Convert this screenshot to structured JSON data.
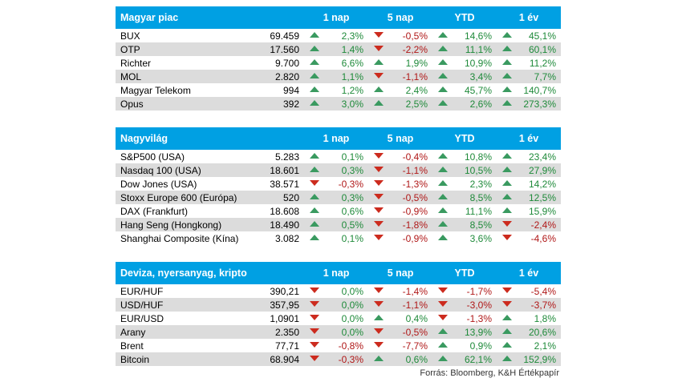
{
  "sections": [
    {
      "title": "Magyar piac",
      "columns": [
        "1 nap",
        "5 nap",
        "YTD",
        "1 év"
      ],
      "rows": [
        {
          "name": "BUX",
          "value": "69.459",
          "changes": [
            {
              "t": "2,3%",
              "d": "up"
            },
            {
              "t": "-0,5%",
              "d": "down"
            },
            {
              "t": "14,6%",
              "d": "up"
            },
            {
              "t": "45,1%",
              "d": "up"
            }
          ]
        },
        {
          "name": "OTP",
          "value": "17.560",
          "changes": [
            {
              "t": "1,4%",
              "d": "up"
            },
            {
              "t": "-2,2%",
              "d": "down"
            },
            {
              "t": "11,1%",
              "d": "up"
            },
            {
              "t": "60,1%",
              "d": "up"
            }
          ]
        },
        {
          "name": "Richter",
          "value": "9.700",
          "changes": [
            {
              "t": "6,6%",
              "d": "up"
            },
            {
              "t": "1,9%",
              "d": "up"
            },
            {
              "t": "10,9%",
              "d": "up"
            },
            {
              "t": "11,2%",
              "d": "up"
            }
          ]
        },
        {
          "name": "MOL",
          "value": "2.820",
          "changes": [
            {
              "t": "1,1%",
              "d": "up"
            },
            {
              "t": "-1,1%",
              "d": "down"
            },
            {
              "t": "3,4%",
              "d": "up"
            },
            {
              "t": "7,7%",
              "d": "up"
            }
          ]
        },
        {
          "name": "Magyar Telekom",
          "value": "994",
          "changes": [
            {
              "t": "1,2%",
              "d": "up"
            },
            {
              "t": "2,4%",
              "d": "up"
            },
            {
              "t": "45,7%",
              "d": "up"
            },
            {
              "t": "140,7%",
              "d": "up"
            }
          ]
        },
        {
          "name": "Opus",
          "value": "392",
          "changes": [
            {
              "t": "3,0%",
              "d": "up"
            },
            {
              "t": "2,5%",
              "d": "up"
            },
            {
              "t": "2,6%",
              "d": "up"
            },
            {
              "t": "273,3%",
              "d": "up"
            }
          ]
        }
      ]
    },
    {
      "title": "Nagyvilág",
      "columns": [
        "1 nap",
        "5 nap",
        "YTD",
        "1 év"
      ],
      "rows": [
        {
          "name": "S&P500 (USA)",
          "value": "5.283",
          "changes": [
            {
              "t": "0,1%",
              "d": "up"
            },
            {
              "t": "-0,4%",
              "d": "down"
            },
            {
              "t": "10,8%",
              "d": "up"
            },
            {
              "t": "23,4%",
              "d": "up"
            }
          ]
        },
        {
          "name": "Nasdaq 100 (USA)",
          "value": "18.601",
          "changes": [
            {
              "t": "0,3%",
              "d": "up"
            },
            {
              "t": "-1,1%",
              "d": "down"
            },
            {
              "t": "10,5%",
              "d": "up"
            },
            {
              "t": "27,9%",
              "d": "up"
            }
          ]
        },
        {
          "name": "Dow Jones (USA)",
          "value": "38.571",
          "changes": [
            {
              "t": "-0,3%",
              "d": "down"
            },
            {
              "t": "-1,3%",
              "d": "down"
            },
            {
              "t": "2,3%",
              "d": "up"
            },
            {
              "t": "14,2%",
              "d": "up"
            }
          ]
        },
        {
          "name": "Stoxx Europe 600 (Európa)",
          "value": "520",
          "changes": [
            {
              "t": "0,3%",
              "d": "up"
            },
            {
              "t": "-0,5%",
              "d": "down"
            },
            {
              "t": "8,5%",
              "d": "up"
            },
            {
              "t": "12,5%",
              "d": "up"
            }
          ]
        },
        {
          "name": "DAX (Frankfurt)",
          "value": "18.608",
          "changes": [
            {
              "t": "0,6%",
              "d": "up"
            },
            {
              "t": "-0,9%",
              "d": "down"
            },
            {
              "t": "11,1%",
              "d": "up"
            },
            {
              "t": "15,9%",
              "d": "up"
            }
          ]
        },
        {
          "name": "Hang Seng (Hongkong)",
          "value": "18.490",
          "changes": [
            {
              "t": "0,5%",
              "d": "up"
            },
            {
              "t": "-1,8%",
              "d": "down"
            },
            {
              "t": "8,5%",
              "d": "up"
            },
            {
              "t": "-2,4%",
              "d": "down"
            }
          ]
        },
        {
          "name": "Shanghai Composite (Kína)",
          "value": "3.082",
          "changes": [
            {
              "t": "0,1%",
              "d": "up"
            },
            {
              "t": "-0,9%",
              "d": "down"
            },
            {
              "t": "3,6%",
              "d": "up"
            },
            {
              "t": "-4,6%",
              "d": "down"
            }
          ]
        }
      ]
    },
    {
      "title": "Deviza, nyersanyag, kripto",
      "columns": [
        "1 nap",
        "5 nap",
        "YTD",
        "1 év"
      ],
      "rows": [
        {
          "name": "EUR/HUF",
          "value": "390,21",
          "changes": [
            {
              "t": "0,0%",
              "d": "down"
            },
            {
              "t": "-1,4%",
              "d": "down"
            },
            {
              "t": "-1,7%",
              "d": "down"
            },
            {
              "t": "-5,4%",
              "d": "down"
            }
          ]
        },
        {
          "name": "USD/HUF",
          "value": "357,95",
          "changes": [
            {
              "t": "0,0%",
              "d": "down"
            },
            {
              "t": "-1,1%",
              "d": "down"
            },
            {
              "t": "-3,0%",
              "d": "down"
            },
            {
              "t": "-3,7%",
              "d": "down"
            }
          ]
        },
        {
          "name": "EUR/USD",
          "value": "1,0901",
          "changes": [
            {
              "t": "0,0%",
              "d": "down"
            },
            {
              "t": "0,4%",
              "d": "up"
            },
            {
              "t": "-1,3%",
              "d": "down"
            },
            {
              "t": "1,8%",
              "d": "up"
            }
          ]
        },
        {
          "name": "Arany",
          "value": "2.350",
          "changes": [
            {
              "t": "0,0%",
              "d": "down"
            },
            {
              "t": "-0,5%",
              "d": "down"
            },
            {
              "t": "13,9%",
              "d": "up"
            },
            {
              "t": "20,6%",
              "d": "up"
            }
          ]
        },
        {
          "name": "Brent",
          "value": "77,71",
          "changes": [
            {
              "t": "-0,8%",
              "d": "down"
            },
            {
              "t": "-7,7%",
              "d": "down"
            },
            {
              "t": "0,9%",
              "d": "up"
            },
            {
              "t": "2,1%",
              "d": "up"
            }
          ]
        },
        {
          "name": "Bitcoin",
          "value": "68.904",
          "changes": [
            {
              "t": "-0,3%",
              "d": "down"
            },
            {
              "t": "0,6%",
              "d": "up"
            },
            {
              "t": "62,1%",
              "d": "up"
            },
            {
              "t": "152,9%",
              "d": "up"
            }
          ]
        }
      ]
    }
  ],
  "source": "Forrás: Bloomberg, K&H Értékpapír",
  "colors": {
    "header": "#00a0e3",
    "alt_row": "#dcdcdc",
    "up": "#3a9a60",
    "down": "#cc2b1e"
  },
  "icons": {
    "up": "triangle-up-icon",
    "down": "triangle-down-icon"
  }
}
